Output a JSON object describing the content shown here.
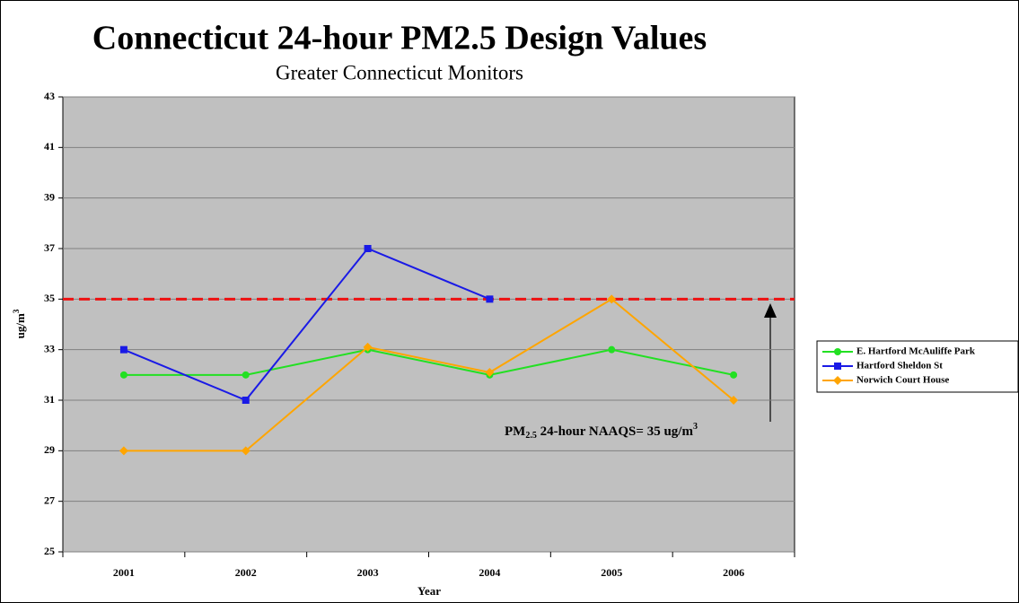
{
  "chart_data": {
    "type": "line",
    "title": "Connecticut 24-hour PM2.5 Design Values",
    "subtitle": "Greater Connecticut Monitors",
    "xlabel": "Year",
    "ylabel": [
      "ug/m",
      "3"
    ],
    "categories": [
      "2001",
      "2002",
      "2003",
      "2004",
      "2005",
      "2006"
    ],
    "series": [
      {
        "name": "E. Hartford McAuliffe Park",
        "color": "#22e022",
        "marker": "circle",
        "values": [
          32,
          32,
          33,
          32,
          33,
          32
        ]
      },
      {
        "name": "Hartford Sheldon St",
        "color": "#1a1ae6",
        "marker": "square",
        "values": [
          33,
          31,
          37,
          35,
          null,
          null
        ]
      },
      {
        "name": "Norwich Court House",
        "color": "#ffa500",
        "marker": "diamond",
        "values": [
          29,
          29,
          33.1,
          32.1,
          35,
          31
        ]
      }
    ],
    "ylim": [
      25,
      43
    ],
    "yticks": [
      25,
      27,
      29,
      31,
      33,
      35,
      37,
      39,
      41,
      43
    ],
    "grid": true,
    "reference_line": {
      "value": 35,
      "color": "#ee1111",
      "style": "dashed"
    },
    "annotation": [
      "PM",
      "2.5",
      " 24-hour NAAQS= 35 ug/m",
      "3"
    ],
    "legend": "right"
  }
}
